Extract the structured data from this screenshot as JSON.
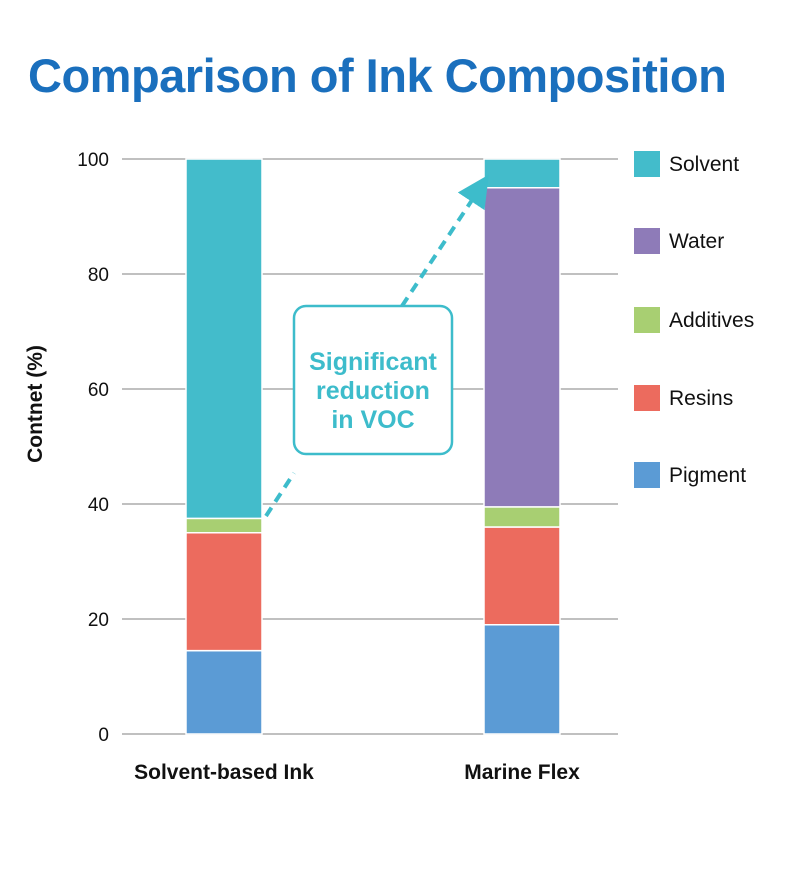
{
  "chart_data": {
    "type": "bar",
    "stacked": true,
    "title": "Comparison of Ink Composition",
    "ylabel": "Contnet (%)",
    "xlabel": "",
    "ylim": [
      0,
      100
    ],
    "yticks": [
      0,
      20,
      40,
      60,
      80,
      100
    ],
    "grid": true,
    "legend_position": "right",
    "categories": [
      "Solvent-based Ink",
      "Marine Flex"
    ],
    "series": [
      {
        "name": "Pigment",
        "color": "#5b9bd5",
        "values": [
          14.5,
          19
        ]
      },
      {
        "name": "Resins",
        "color": "#ec6b5e",
        "values": [
          20.5,
          17
        ]
      },
      {
        "name": "Additives",
        "color": "#a8cf72",
        "values": [
          2.5,
          3.5
        ]
      },
      {
        "name": "Water",
        "color": "#8e7bb8",
        "values": [
          0,
          55.5
        ]
      },
      {
        "name": "Solvent",
        "color": "#43bccb",
        "values": [
          62.5,
          5
        ]
      }
    ],
    "legend_order": [
      "Solvent",
      "Water",
      "Additives",
      "Resins",
      "Pigment"
    ],
    "annotation": {
      "lines": [
        "Significant",
        "reduction",
        "in VOC"
      ],
      "color": "#3dbccb"
    }
  }
}
